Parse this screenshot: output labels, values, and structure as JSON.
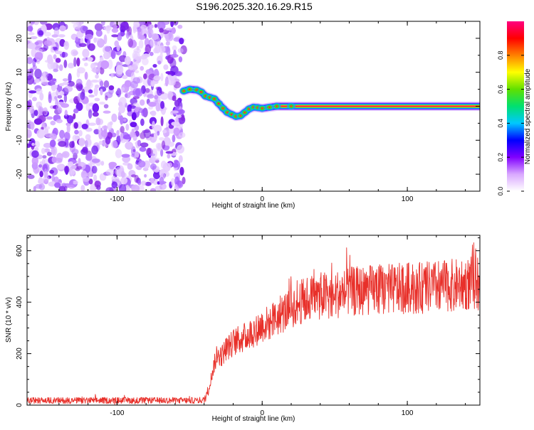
{
  "title": "S196.2025.320.16.29.R15",
  "chart_data": [
    {
      "type": "heatmap",
      "title": "S196.2025.320.16.29.R15",
      "xlabel": "Height of straight line (km)",
      "ylabel": "Frequency (Hz)",
      "xlim": [
        -162,
        150
      ],
      "ylim": [
        -25,
        25
      ],
      "xticks": [
        -100,
        0,
        100
      ],
      "yticks": [
        -20,
        -10,
        0,
        10,
        20
      ],
      "noise_region_x": [
        -162,
        -54
      ],
      "signal_track": {
        "x": [
          -54,
          -50,
          -45,
          -42,
          -39,
          -36,
          -33,
          -30,
          -27,
          -24,
          -21,
          -18,
          -15,
          -12,
          -9,
          -6,
          -3,
          0,
          5,
          10,
          20,
          40,
          60,
          80,
          100,
          120,
          150
        ],
        "frequency": [
          4.5,
          5.0,
          4.8,
          4.2,
          3.0,
          2.6,
          2.2,
          0.8,
          -0.6,
          -1.8,
          -2.4,
          -3.0,
          -2.8,
          -1.8,
          -0.8,
          -0.3,
          -0.4,
          -0.6,
          -0.3,
          0.0,
          0.0,
          0.0,
          0.0,
          0.0,
          0.0,
          0.0,
          0.0
        ]
      },
      "colorbar": {
        "label": "Normalized spectral amplitude",
        "range": [
          0.0,
          1.0
        ],
        "ticks": [
          0.0,
          0.2,
          0.4,
          0.6,
          0.8
        ],
        "tick_labels": [
          "0.0",
          "0.2",
          "0.4",
          "0.6",
          "0.8"
        ],
        "colors": [
          "#ffffff",
          "#d9a8ff",
          "#8000ff",
          "#0000ff",
          "#00c8ff",
          "#00e070",
          "#60e000",
          "#ffff00",
          "#ff8000",
          "#ff0000",
          "#ff0080"
        ]
      }
    },
    {
      "type": "line",
      "xlabel": "Height of straight line (km)",
      "ylabel": "SNR (10 * v/v)",
      "xlim": [
        -162,
        150
      ],
      "ylim": [
        0,
        660
      ],
      "xticks": [
        -100,
        0,
        100
      ],
      "yticks": [
        0,
        200,
        400,
        600
      ],
      "color": "#e8302a",
      "series": [
        {
          "name": "SNR",
          "x": [
            -162,
            -140,
            -120,
            -100,
            -80,
            -60,
            -45,
            -40,
            -37,
            -35,
            -33,
            -30,
            -28,
            -25,
            -22,
            -20,
            -15,
            -10,
            -5,
            0,
            5,
            10,
            15,
            20,
            25,
            30,
            35,
            40,
            50,
            60,
            70,
            80,
            90,
            100,
            110,
            120,
            130,
            140,
            150
          ],
          "y": [
            18,
            18,
            18,
            18,
            18,
            18,
            18,
            20,
            60,
            110,
            160,
            200,
            190,
            220,
            230,
            245,
            255,
            270,
            290,
            310,
            320,
            340,
            360,
            380,
            395,
            410,
            420,
            425,
            430,
            440,
            445,
            450,
            450,
            455,
            455,
            460,
            465,
            470,
            480
          ]
        }
      ]
    }
  ]
}
